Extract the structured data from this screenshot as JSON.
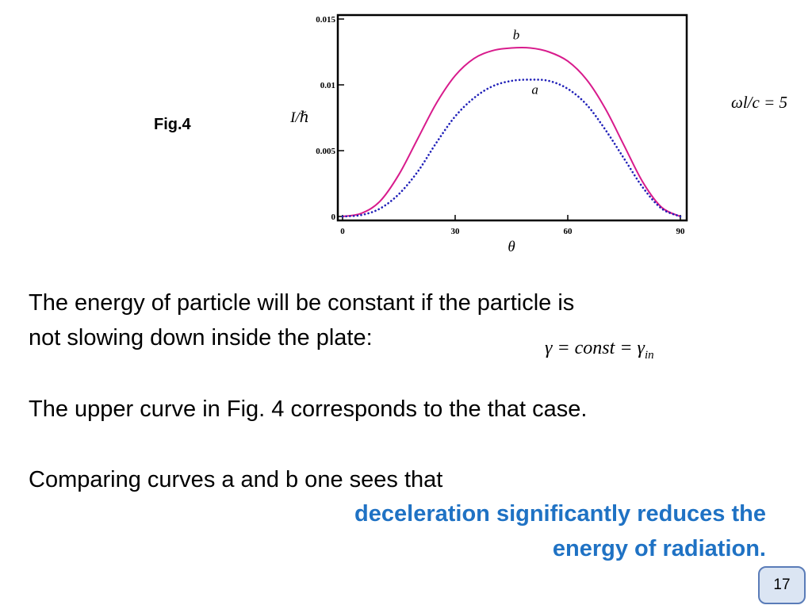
{
  "figure": {
    "label": "Fig.4",
    "parameter": "ωl/c = 5"
  },
  "chart_data": {
    "type": "line",
    "xlabel": "θ",
    "ylabel": "I/ℏ",
    "xlim": [
      0,
      90
    ],
    "ylim": [
      0,
      0.015
    ],
    "xticks": [
      0,
      30,
      60,
      90
    ],
    "xtick_labels": [
      "0",
      "30",
      "60",
      "90"
    ],
    "yticks": [
      0,
      0.005,
      0.01,
      0.015
    ],
    "ytick_labels": [
      "0",
      "0.005",
      "0.01",
      "0.015"
    ],
    "grid": false,
    "x": [
      0,
      5,
      10,
      15,
      20,
      25,
      30,
      35,
      40,
      45,
      50,
      55,
      60,
      65,
      70,
      75,
      80,
      85,
      90
    ],
    "series": [
      {
        "name": "b",
        "color": "#d81b8c",
        "style": "solid",
        "values": [
          0,
          0.00024,
          0.00116,
          0.00318,
          0.0059,
          0.0086,
          0.0107,
          0.012,
          0.0126,
          0.0128,
          0.0128,
          0.0125,
          0.0118,
          0.0104,
          0.0082,
          0.0054,
          0.0026,
          0.0007,
          0
        ]
      },
      {
        "name": "a",
        "color": "#2020b8",
        "style": "dotted",
        "values": [
          0,
          0.00011,
          0.0006,
          0.0017,
          0.0034,
          0.0056,
          0.0076,
          0.009,
          0.0099,
          0.0103,
          0.0104,
          0.0103,
          0.0097,
          0.0085,
          0.0066,
          0.0044,
          0.0022,
          0.0006,
          0
        ]
      }
    ]
  },
  "text": {
    "para1_line1": "The energy of particle will be constant if the particle is",
    "para1_line2": "not slowing down inside the plate:",
    "equation": "γ = const = γ",
    "equation_sub": "in",
    "para2": "The upper curve in Fig. 4 corresponds to the that case.",
    "para3": "Comparing curves a and b one sees that",
    "highlight_line1": "deceleration significantly reduces the",
    "highlight_line2": "energy of radiation."
  },
  "slide_number": "17"
}
